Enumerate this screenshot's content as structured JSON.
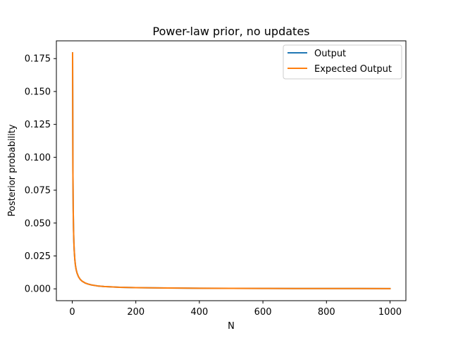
{
  "chart_data": {
    "type": "line",
    "title": "Power-law prior, no updates",
    "xlabel": "N",
    "ylabel": "Posterior probability",
    "xlim": [
      -50,
      1050
    ],
    "ylim": [
      -0.009,
      0.1885
    ],
    "xticks": [
      0,
      200,
      400,
      600,
      800,
      1000
    ],
    "xtick_labels": [
      "0",
      "200",
      "400",
      "600",
      "800",
      "1000"
    ],
    "yticks": [
      0.0,
      0.025,
      0.05,
      0.075,
      0.1,
      0.125,
      0.15,
      0.175
    ],
    "ytick_labels": [
      "0.000",
      "0.025",
      "0.050",
      "0.075",
      "0.100",
      "0.125",
      "0.150",
      "0.175"
    ],
    "grid": false,
    "legend_position": "top-right",
    "x": [
      1,
      2,
      3,
      4,
      5,
      6,
      8,
      10,
      12,
      15,
      20,
      25,
      30,
      40,
      50,
      60,
      80,
      100,
      150,
      200,
      300,
      400,
      500,
      600,
      700,
      800,
      900,
      1000
    ],
    "series": [
      {
        "name": "Output",
        "color": "#1f77b4",
        "values": [
          0.1793,
          0.0897,
          0.0598,
          0.0448,
          0.0359,
          0.0299,
          0.0224,
          0.0179,
          0.0149,
          0.012,
          0.009,
          0.0072,
          0.006,
          0.0045,
          0.0036,
          0.003,
          0.0022,
          0.0018,
          0.0012,
          0.0009,
          0.0006,
          0.00045,
          0.00036,
          0.0003,
          0.00026,
          0.00022,
          0.0002,
          0.00018
        ]
      },
      {
        "name": "Expected Output",
        "color": "#ff7f0e",
        "values": [
          0.1793,
          0.0897,
          0.0598,
          0.0448,
          0.0359,
          0.0299,
          0.0224,
          0.0179,
          0.0149,
          0.012,
          0.009,
          0.0072,
          0.006,
          0.0045,
          0.0036,
          0.003,
          0.0022,
          0.0018,
          0.0012,
          0.0009,
          0.0006,
          0.00045,
          0.00036,
          0.0003,
          0.00026,
          0.00022,
          0.0002,
          0.00018
        ]
      }
    ]
  }
}
